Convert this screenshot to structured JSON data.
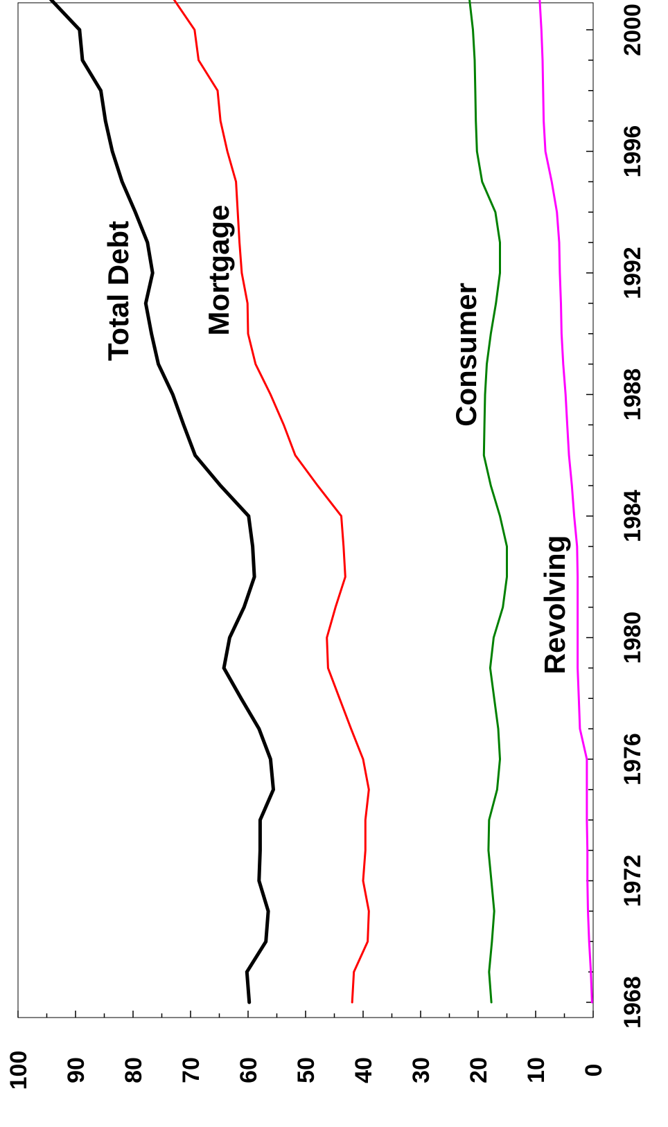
{
  "chart_data": {
    "type": "line",
    "orientation": "rotated-90-clockwise",
    "title": "",
    "xlabel": "",
    "ylabel": "",
    "xlim": [
      1967.5,
      2001.5
    ],
    "ylim": [
      0,
      100
    ],
    "x_tick_labels": [
      "1968",
      "1972",
      "1976",
      "1980",
      "1984",
      "1988",
      "1992",
      "1996",
      "2000"
    ],
    "x_tick_values": [
      1968,
      1972,
      1976,
      1980,
      1984,
      1988,
      1992,
      1996,
      2000
    ],
    "y_tick_labels": [
      "0",
      "10",
      "20",
      "30",
      "40",
      "50",
      "60",
      "70",
      "80",
      "90",
      "100"
    ],
    "y_tick_values": [
      0,
      10,
      20,
      30,
      40,
      50,
      60,
      70,
      80,
      90,
      100
    ],
    "grid": false,
    "legend": "none (series labeled inline)",
    "x": [
      1968,
      1969,
      1970,
      1971,
      1972,
      1973,
      1974,
      1975,
      1976,
      1977,
      1978,
      1979,
      1980,
      1981,
      1982,
      1983,
      1984,
      1985,
      1986,
      1987,
      1988,
      1989,
      1990,
      1991,
      1992,
      1993,
      1994,
      1995,
      1996,
      1997,
      1998,
      1999,
      2000,
      2001
    ],
    "series": [
      {
        "name": "Total Debt",
        "color": "#000000",
        "values": [
          59.8,
          60.2,
          56.9,
          56.5,
          58.1,
          57.9,
          57.9,
          55.6,
          56.1,
          58.1,
          61.2,
          64.2,
          63.2,
          60.7,
          58.9,
          59.2,
          59.9,
          64.8,
          69.2,
          71.2,
          73.1,
          75.6,
          76.8,
          77.8,
          76.6,
          77.5,
          79.6,
          81.9,
          83.6,
          84.8,
          85.6,
          88.8,
          89.3,
          94.3
        ],
        "stroke_width": 5
      },
      {
        "name": "Mortgage",
        "color": "#ff0000",
        "values": [
          41.9,
          41.6,
          39.2,
          39.0,
          40.0,
          39.6,
          39.6,
          39.0,
          40.0,
          42.1,
          44.1,
          46.1,
          46.3,
          44.8,
          43.1,
          43.4,
          43.8,
          47.9,
          51.8,
          53.8,
          56.1,
          58.7,
          60.0,
          60.1,
          61.1,
          61.5,
          61.8,
          62.1,
          63.6,
          64.8,
          65.3,
          68.6,
          69.3,
          72.9
        ],
        "stroke_width": 3
      },
      {
        "name": "Consumer",
        "color": "#008000",
        "values": [
          17.7,
          18.1,
          17.6,
          17.2,
          17.7,
          18.2,
          18.1,
          16.7,
          16.2,
          16.5,
          17.2,
          17.9,
          17.3,
          15.7,
          15.0,
          15.0,
          16.2,
          17.8,
          19.0,
          18.9,
          18.8,
          18.5,
          17.8,
          16.9,
          16.2,
          16.2,
          17.0,
          19.3,
          20.2,
          20.4,
          20.5,
          20.6,
          20.9,
          21.5
        ],
        "stroke_width": 3
      },
      {
        "name": "Revolving",
        "color": "#ff00ff",
        "values": [
          0.2,
          0.4,
          0.7,
          0.9,
          1.0,
          1.0,
          1.1,
          1.1,
          1.1,
          2.3,
          2.5,
          2.7,
          2.7,
          2.7,
          2.7,
          2.8,
          3.3,
          3.7,
          4.2,
          4.5,
          4.8,
          5.2,
          5.5,
          5.6,
          5.8,
          5.9,
          6.3,
          7.2,
          8.3,
          8.6,
          8.7,
          8.8,
          9.0,
          9.3
        ],
        "stroke_width": 3
      }
    ],
    "annotations": [
      {
        "text": "Total Debt",
        "series": "Total Debt"
      },
      {
        "text": "Mortgage",
        "series": "Mortgage"
      },
      {
        "text": "Consumer",
        "series": "Consumer"
      },
      {
        "text": "Revolving",
        "series": "Revolving"
      }
    ]
  }
}
